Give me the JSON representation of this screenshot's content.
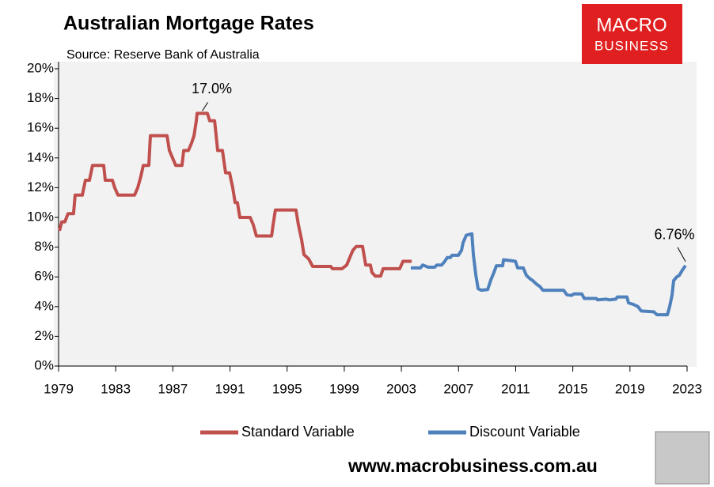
{
  "chart_data": {
    "type": "line",
    "title": "Australian Mortgage Rates",
    "subtitle": "Source: Reserve Bank of Australia",
    "logo": [
      "MACRO",
      "BUSINESS"
    ],
    "footer": "www.macrobusiness.com.au",
    "annotations": [
      "17.0%",
      "6.76%"
    ],
    "xlim": [
      1979,
      2023
    ],
    "xticks": [
      1979,
      1983,
      1987,
      1991,
      1995,
      1999,
      2003,
      2007,
      2011,
      2015,
      2019,
      2023
    ],
    "ylim": [
      0,
      20
    ],
    "yticks": [
      {
        "value": 0,
        "label": "0%"
      },
      {
        "value": 2,
        "label": "2%"
      },
      {
        "value": 4,
        "label": "4%"
      },
      {
        "value": 6,
        "label": "6%"
      },
      {
        "value": 8,
        "label": "8%"
      },
      {
        "value": 10,
        "label": "10%"
      },
      {
        "value": 12,
        "label": "12%"
      },
      {
        "value": 14,
        "label": "14%"
      },
      {
        "value": 16,
        "label": "16%"
      },
      {
        "value": 18,
        "label": "18%"
      },
      {
        "value": 20,
        "label": "20%"
      }
    ],
    "legend": "bottom",
    "series": [
      {
        "name": "Standard Variable",
        "color": "#c0504d",
        "x": [
          1979.06,
          1979.22,
          1979.44,
          1979.66,
          1980.05,
          1980.16,
          1980.66,
          1980.88,
          1981.16,
          1981.38,
          1982.16,
          1982.27,
          1982.77,
          1982.93,
          1983.16,
          1984.32,
          1984.54,
          1984.76,
          1984.93,
          1985.32,
          1985.43,
          1986.59,
          1986.76,
          1986.98,
          1987.2,
          1987.64,
          1987.76,
          1988.09,
          1988.31,
          1988.48,
          1988.64,
          1988.7,
          1989.42,
          1989.58,
          1989.92,
          1990.14,
          1990.47,
          1990.69,
          1990.97,
          1991.19,
          1991.36,
          1991.52,
          1991.69,
          1992.41,
          1992.63,
          1992.85,
          1993.91,
          1994.02,
          1994.18,
          1995.62,
          1995.79,
          1996.01,
          1996.18,
          1996.51,
          1996.79,
          1998.06,
          1998.17,
          1998.84,
          1999.17,
          1999.39,
          1999.61,
          1999.84,
          2000.28,
          2000.5,
          2000.83,
          2000.94,
          2001.17,
          2001.55,
          2001.72,
          2002.88,
          2003.11,
          2003.72
        ],
        "values": [
          9.1,
          9.7,
          9.7,
          10.25,
          10.25,
          11.5,
          11.5,
          12.5,
          12.5,
          13.5,
          13.5,
          12.5,
          12.5,
          12.0,
          11.5,
          11.5,
          12.0,
          12.75,
          13.5,
          13.5,
          15.5,
          15.5,
          14.5,
          14.0,
          13.5,
          13.5,
          14.5,
          14.5,
          15.0,
          15.5,
          16.5,
          17.0,
          17.0,
          16.5,
          16.5,
          14.5,
          14.5,
          13.0,
          13.0,
          12.0,
          11.0,
          11.0,
          10.0,
          10.0,
          9.5,
          8.75,
          8.75,
          9.5,
          10.5,
          10.5,
          9.5,
          8.5,
          7.5,
          7.2,
          6.7,
          6.7,
          6.55,
          6.55,
          6.8,
          7.3,
          7.8,
          8.05,
          8.05,
          6.8,
          6.8,
          6.3,
          6.05,
          6.05,
          6.55,
          6.55,
          7.05,
          7.05
        ]
      },
      {
        "name": "Discount Variable",
        "color": "#4f81bd",
        "x": [
          2003.66,
          2004.33,
          2004.49,
          2004.88,
          2005.32,
          2005.49,
          2005.82,
          2006.04,
          2006.21,
          2006.43,
          2006.54,
          2006.99,
          2007.21,
          2007.32,
          2007.54,
          2007.93,
          2008.04,
          2008.2,
          2008.37,
          2008.59,
          2009.04,
          2009.26,
          2009.48,
          2009.65,
          2010.09,
          2010.15,
          2010.59,
          2010.98,
          2011.14,
          2011.53,
          2011.75,
          2011.97,
          2012.19,
          2012.47,
          2012.69,
          2012.91,
          2014.36,
          2014.58,
          2014.91,
          2015.08,
          2015.63,
          2015.8,
          2016.63,
          2016.74,
          2017.35,
          2017.57,
          2018.01,
          2018.12,
          2018.79,
          2018.9,
          2019.23,
          2019.56,
          2019.79,
          2020.67,
          2020.89,
          2021.62,
          2021.78,
          2021.95,
          2022.06,
          2022.28,
          2022.45,
          2022.67,
          2022.89
        ],
        "values": [
          6.6,
          6.6,
          6.8,
          6.65,
          6.65,
          6.8,
          6.8,
          7.05,
          7.3,
          7.3,
          7.45,
          7.45,
          7.8,
          8.3,
          8.8,
          8.9,
          7.5,
          6.2,
          5.2,
          5.1,
          5.15,
          5.8,
          6.3,
          6.75,
          6.75,
          7.15,
          7.1,
          7.05,
          6.6,
          6.6,
          6.1,
          5.9,
          5.75,
          5.5,
          5.35,
          5.1,
          5.1,
          4.8,
          4.75,
          4.85,
          4.85,
          4.55,
          4.55,
          4.45,
          4.5,
          4.45,
          4.5,
          4.65,
          4.65,
          4.25,
          4.15,
          4.0,
          3.7,
          3.65,
          3.45,
          3.45,
          4.0,
          4.8,
          5.75,
          6.0,
          6.1,
          6.45,
          6.76
        ]
      }
    ]
  }
}
